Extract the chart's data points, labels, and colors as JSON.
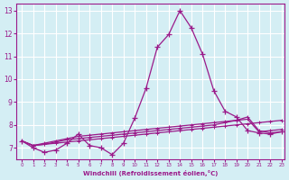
{
  "xlabel": "Windchill (Refroidissement éolien,°C)",
  "bg_color": "#d4eef4",
  "line_color": "#9b1a8a",
  "grid_color": "#ffffff",
  "xmin": -0.5,
  "xmax": 23.3,
  "ymin": 6.5,
  "ymax": 13.3,
  "yticks": [
    7,
    8,
    9,
    10,
    11,
    12,
    13
  ],
  "xticks": [
    0,
    1,
    2,
    3,
    4,
    5,
    6,
    7,
    8,
    9,
    10,
    11,
    12,
    13,
    14,
    15,
    16,
    17,
    18,
    19,
    20,
    21,
    22,
    23
  ],
  "curve1_x": [
    0,
    1,
    2,
    3,
    4,
    5,
    6,
    7,
    8,
    9,
    10,
    11,
    12,
    13,
    14,
    15,
    16,
    17,
    18,
    19,
    20,
    21,
    22,
    23
  ],
  "curve1_y": [
    7.3,
    7.0,
    6.8,
    6.9,
    7.2,
    7.6,
    7.1,
    7.0,
    6.7,
    7.2,
    8.3,
    9.6,
    11.4,
    11.95,
    13.0,
    12.25,
    11.1,
    9.5,
    8.6,
    8.35,
    7.75,
    7.65,
    7.6,
    7.7
  ],
  "curve2_x": [
    0,
    1,
    2,
    3,
    4,
    5,
    6,
    7,
    8,
    9,
    10,
    11,
    12,
    13,
    14,
    15,
    16,
    17,
    18,
    19,
    20,
    21,
    22,
    23
  ],
  "curve2_y": [
    7.3,
    7.1,
    7.15,
    7.2,
    7.25,
    7.3,
    7.35,
    7.4,
    7.45,
    7.5,
    7.55,
    7.6,
    7.65,
    7.7,
    7.75,
    7.8,
    7.85,
    7.9,
    7.95,
    8.0,
    8.05,
    8.1,
    8.15,
    8.2
  ],
  "curve3_x": [
    0,
    1,
    2,
    3,
    4,
    5,
    6,
    7,
    8,
    9,
    10,
    11,
    12,
    13,
    14,
    15,
    16,
    17,
    18,
    19,
    20,
    21,
    22,
    23
  ],
  "curve3_y": [
    7.3,
    7.1,
    7.15,
    7.25,
    7.35,
    7.4,
    7.45,
    7.5,
    7.55,
    7.6,
    7.65,
    7.7,
    7.75,
    7.8,
    7.85,
    7.9,
    7.95,
    8.0,
    8.1,
    8.2,
    8.35,
    7.75,
    7.65,
    7.7
  ],
  "curve4_x": [
    0,
    1,
    2,
    3,
    4,
    5,
    6,
    7,
    8,
    9,
    10,
    11,
    12,
    13,
    14,
    15,
    16,
    17,
    18,
    19,
    20,
    21,
    22,
    23
  ],
  "curve4_y": [
    7.3,
    7.1,
    7.2,
    7.3,
    7.4,
    7.5,
    7.55,
    7.6,
    7.65,
    7.7,
    7.75,
    7.8,
    7.85,
    7.9,
    7.95,
    8.0,
    8.05,
    8.1,
    8.15,
    8.2,
    8.25,
    7.7,
    7.75,
    7.8
  ]
}
